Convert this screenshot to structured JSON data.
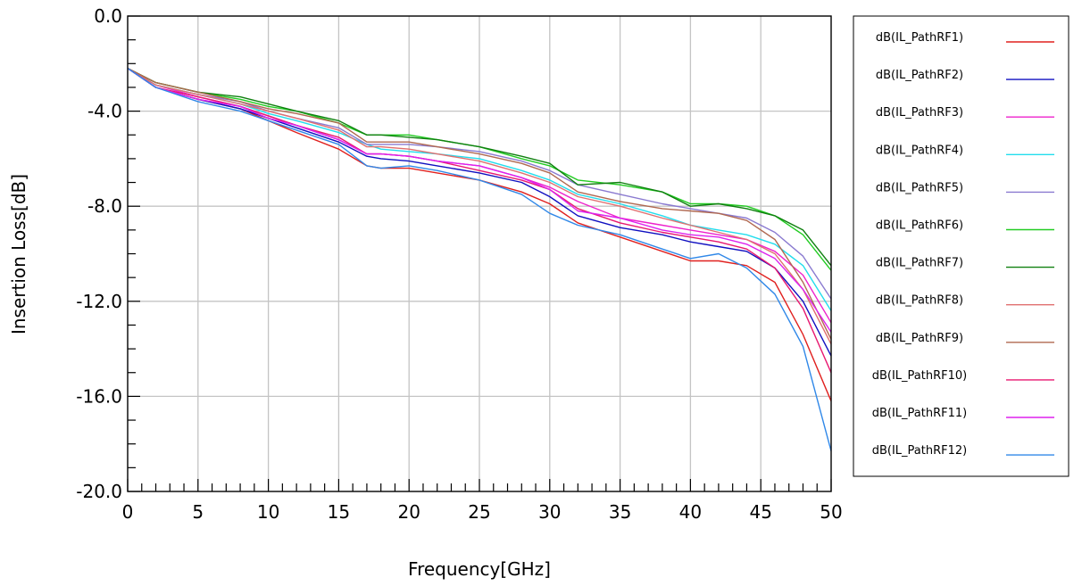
{
  "chart_data": {
    "type": "line",
    "title": "",
    "xlabel": "Frequency[GHz]",
    "ylabel": "Insertion Loss[dB]",
    "xlim": [
      0,
      50
    ],
    "ylim": [
      -20,
      0
    ],
    "x_ticks": [
      0,
      5,
      10,
      15,
      20,
      25,
      30,
      35,
      40,
      45,
      50
    ],
    "x_tick_labels": [
      "0",
      "5",
      "10",
      "15",
      "20",
      "25",
      "30",
      "35",
      "40",
      "45",
      "50"
    ],
    "y_ticks": [
      0,
      -4,
      -8,
      -12,
      -16,
      -20
    ],
    "y_tick_labels": [
      "0.0",
      "-4.0",
      "-8.0",
      "-12.0",
      "-16.0",
      "-20.0"
    ],
    "grid": true,
    "legend_position": "right",
    "x": [
      0,
      2,
      5,
      8,
      10,
      12,
      15,
      17,
      18,
      20,
      22,
      25,
      28,
      30,
      32,
      35,
      38,
      40,
      42,
      44,
      46,
      48,
      50
    ],
    "series": [
      {
        "name": "dB(IL_PathRF1)",
        "color": "#e0201e",
        "values": [
          -2.2,
          -3.0,
          -3.5,
          -3.9,
          -4.4,
          -4.9,
          -5.6,
          -6.3,
          -6.4,
          -6.4,
          -6.6,
          -6.9,
          -7.4,
          -7.9,
          -8.7,
          -9.3,
          -9.9,
          -10.3,
          -10.3,
          -10.5,
          -11.2,
          -13.4,
          -16.2
        ]
      },
      {
        "name": "dB(IL_PathRF2)",
        "color": "#1010c0",
        "values": [
          -2.2,
          -3.0,
          -3.5,
          -3.9,
          -4.3,
          -4.7,
          -5.3,
          -5.9,
          -6.0,
          -6.1,
          -6.3,
          -6.6,
          -7.0,
          -7.6,
          -8.4,
          -8.9,
          -9.2,
          -9.5,
          -9.7,
          -9.9,
          -10.6,
          -12.0,
          -14.3
        ]
      },
      {
        "name": "dB(IL_PathRF3)",
        "color": "#ee22cc",
        "values": [
          -2.2,
          -2.9,
          -3.4,
          -3.8,
          -4.2,
          -4.6,
          -5.2,
          -5.8,
          -5.8,
          -5.9,
          -6.1,
          -6.3,
          -6.8,
          -7.2,
          -7.8,
          -8.5,
          -8.8,
          -9.0,
          -9.2,
          -9.4,
          -9.9,
          -10.9,
          -12.9
        ]
      },
      {
        "name": "dB(IL_PathRF4)",
        "color": "#22dded",
        "values": [
          -2.2,
          -2.9,
          -3.3,
          -3.7,
          -4.1,
          -4.4,
          -4.9,
          -5.4,
          -5.6,
          -5.7,
          -5.8,
          -6.0,
          -6.5,
          -6.9,
          -7.5,
          -7.9,
          -8.4,
          -8.8,
          -9.0,
          -9.2,
          -9.6,
          -10.5,
          -12.4
        ]
      },
      {
        "name": "dB(IL_PathRF5)",
        "color": "#8a7ad0",
        "values": [
          -2.2,
          -2.9,
          -3.3,
          -3.6,
          -4.0,
          -4.3,
          -4.7,
          -5.4,
          -5.4,
          -5.4,
          -5.5,
          -5.7,
          -6.1,
          -6.5,
          -7.1,
          -7.5,
          -7.9,
          -8.1,
          -8.3,
          -8.5,
          -9.1,
          -10.1,
          -11.9
        ]
      },
      {
        "name": "dB(IL_PathRF6)",
        "color": "#22cc22",
        "values": [
          -2.2,
          -2.8,
          -3.2,
          -3.5,
          -3.8,
          -4.0,
          -4.5,
          -5.0,
          -5.0,
          -5.0,
          -5.2,
          -5.5,
          -6.0,
          -6.3,
          -6.9,
          -7.1,
          -7.4,
          -7.9,
          -7.9,
          -8.0,
          -8.4,
          -9.2,
          -10.7
        ]
      },
      {
        "name": "dB(IL_PathRF7)",
        "color": "#108010",
        "values": [
          -2.2,
          -2.8,
          -3.2,
          -3.4,
          -3.7,
          -4.0,
          -4.4,
          -5.0,
          -5.0,
          -5.1,
          -5.2,
          -5.5,
          -5.9,
          -6.2,
          -7.1,
          -7.0,
          -7.4,
          -8.0,
          -7.9,
          -8.1,
          -8.4,
          -9.0,
          -10.5
        ]
      },
      {
        "name": "dB(IL_PathRF8)",
        "color": "#e07070",
        "values": [
          -2.2,
          -2.9,
          -3.3,
          -3.7,
          -4.0,
          -4.3,
          -4.8,
          -5.5,
          -5.5,
          -5.6,
          -5.8,
          -6.1,
          -6.6,
          -7.0,
          -7.6,
          -8.0,
          -8.5,
          -8.8,
          -9.1,
          -9.4,
          -10.0,
          -11.5,
          -13.8
        ]
      },
      {
        "name": "dB(IL_PathRF9)",
        "color": "#b06850",
        "values": [
          -2.2,
          -2.8,
          -3.2,
          -3.6,
          -3.9,
          -4.1,
          -4.5,
          -5.3,
          -5.3,
          -5.3,
          -5.5,
          -5.8,
          -6.2,
          -6.6,
          -7.4,
          -7.8,
          -8.1,
          -8.2,
          -8.3,
          -8.6,
          -9.4,
          -11.2,
          -13.6
        ]
      },
      {
        "name": "dB(IL_PathRF10)",
        "color": "#e81870",
        "values": [
          -2.2,
          -3.0,
          -3.4,
          -3.8,
          -4.2,
          -4.6,
          -5.1,
          -5.8,
          -5.8,
          -5.9,
          -6.1,
          -6.5,
          -6.9,
          -7.3,
          -8.1,
          -8.7,
          -9.1,
          -9.3,
          -9.5,
          -9.8,
          -10.6,
          -12.3,
          -15.0
        ]
      },
      {
        "name": "dB(IL_PathRF11)",
        "color": "#dd22ee",
        "values": [
          -2.2,
          -3.0,
          -3.5,
          -3.8,
          -4.3,
          -4.6,
          -5.2,
          -5.8,
          -5.8,
          -5.9,
          -6.1,
          -6.3,
          -6.8,
          -7.3,
          -8.2,
          -8.5,
          -9.0,
          -9.2,
          -9.3,
          -9.6,
          -10.2,
          -11.5,
          -13.3
        ]
      },
      {
        "name": "dB(IL_PathRF12)",
        "color": "#3088e8",
        "values": [
          -2.2,
          -3.0,
          -3.6,
          -4.0,
          -4.4,
          -4.8,
          -5.4,
          -6.3,
          -6.4,
          -6.3,
          -6.5,
          -6.9,
          -7.5,
          -8.3,
          -8.8,
          -9.2,
          -9.8,
          -10.2,
          -10.0,
          -10.6,
          -11.7,
          -13.9,
          -18.3
        ]
      }
    ]
  }
}
